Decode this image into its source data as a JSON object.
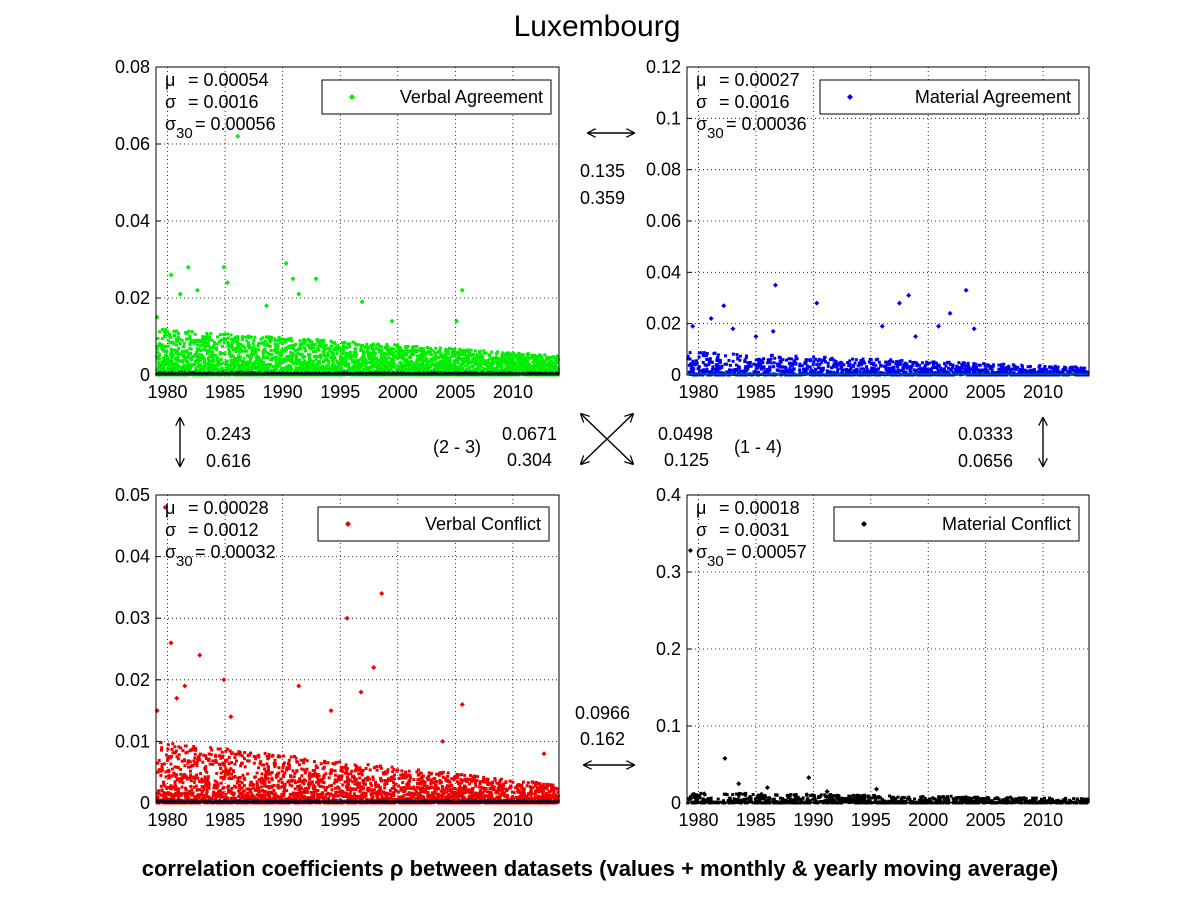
{
  "figure": {
    "title": "Luxembourg",
    "caption": "correlation coefficients ρ between datasets (values + monthly & yearly moving average)"
  },
  "chart_data": [
    {
      "type": "scatter",
      "id": "va",
      "legend": "Verbal Agreement",
      "color": "#00ee00",
      "stats": {
        "mu_label": "μ",
        "mu": "= 0.00054",
        "sigma_label": "σ",
        "sigma": "= 0.0016",
        "sigma30_label": "σ",
        "sigma30_sub": "30",
        "sigma30": "= 0.00056"
      },
      "xlim": [
        1979,
        2014
      ],
      "ylim": [
        0,
        0.08
      ],
      "xticks": [
        "1980",
        "1985",
        "1990",
        "1995",
        "2000",
        "2005",
        "2010"
      ],
      "xtick_values": [
        1980,
        1985,
        1990,
        1995,
        2000,
        2005,
        2010
      ],
      "yticks": [
        "0",
        "0.02",
        "0.04",
        "0.06",
        "0.08"
      ],
      "ytick_values": [
        0,
        0.02,
        0.04,
        0.06,
        0.08
      ],
      "highlights": [
        {
          "x": 1986.1,
          "y": 0.062
        },
        {
          "x": 1980.3,
          "y": 0.026
        },
        {
          "x": 1981.8,
          "y": 0.028
        },
        {
          "x": 1981.1,
          "y": 0.021
        },
        {
          "x": 1982.6,
          "y": 0.022
        },
        {
          "x": 1984.9,
          "y": 0.028
        },
        {
          "x": 1985.2,
          "y": 0.024
        },
        {
          "x": 1990.3,
          "y": 0.029
        },
        {
          "x": 1990.9,
          "y": 0.025
        },
        {
          "x": 1991.4,
          "y": 0.021
        },
        {
          "x": 1992.9,
          "y": 0.025
        },
        {
          "x": 1996.9,
          "y": 0.019
        },
        {
          "x": 2005.6,
          "y": 0.022
        },
        {
          "x": 1979.1,
          "y": 0.015
        },
        {
          "x": 1988.6,
          "y": 0.018
        },
        {
          "x": 1999.5,
          "y": 0.014
        },
        {
          "x": 2005.1,
          "y": 0.014
        }
      ],
      "cloud": {
        "density": 9.0,
        "ymax_early": 0.012,
        "ymax_late": 0.005,
        "seed": 11
      }
    },
    {
      "type": "scatter",
      "id": "ma",
      "legend": "Material Agreement",
      "color": "#0000ee",
      "stats": {
        "mu_label": "μ",
        "mu": "= 0.00027",
        "sigma_label": "σ",
        "sigma": "= 0.0016",
        "sigma30_label": "σ",
        "sigma30_sub": "30",
        "sigma30": "= 0.00036"
      },
      "xlim": [
        1979,
        2014
      ],
      "ylim": [
        0,
        0.12
      ],
      "xticks": [
        "1980",
        "1985",
        "1990",
        "1995",
        "2000",
        "2005",
        "2010"
      ],
      "xtick_values": [
        1980,
        1985,
        1990,
        1995,
        2000,
        2005,
        2010
      ],
      "yticks": [
        "0",
        "0.02",
        "0.04",
        "0.06",
        "0.08",
        "0.1",
        "0.12"
      ],
      "ytick_values": [
        0,
        0.02,
        0.04,
        0.06,
        0.08,
        0.1,
        0.12
      ],
      "highlights": [
        {
          "x": 1986.7,
          "y": 0.035
        },
        {
          "x": 1982.2,
          "y": 0.027
        },
        {
          "x": 1990.3,
          "y": 0.028
        },
        {
          "x": 1998.3,
          "y": 0.031
        },
        {
          "x": 1997.5,
          "y": 0.028
        },
        {
          "x": 2003.3,
          "y": 0.033
        },
        {
          "x": 2001.9,
          "y": 0.024
        },
        {
          "x": 1981.1,
          "y": 0.022
        },
        {
          "x": 1979.5,
          "y": 0.019
        },
        {
          "x": 1983.0,
          "y": 0.018
        },
        {
          "x": 1986.5,
          "y": 0.017
        },
        {
          "x": 1996.0,
          "y": 0.019
        },
        {
          "x": 2004.0,
          "y": 0.018
        },
        {
          "x": 2000.9,
          "y": 0.019
        },
        {
          "x": 1998.9,
          "y": 0.015
        },
        {
          "x": 1985.0,
          "y": 0.015
        }
      ],
      "cloud": {
        "density": 3.2,
        "ymax_early": 0.009,
        "ymax_late": 0.003,
        "seed": 23
      }
    },
    {
      "type": "scatter",
      "id": "vc",
      "legend": "Verbal Conflict",
      "color": "#ee0000",
      "stats": {
        "mu_label": "μ",
        "mu": "= 0.00028",
        "sigma_label": "σ",
        "sigma": "= 0.0012",
        "sigma30_label": "σ",
        "sigma30_sub": "30",
        "sigma30": "= 0.00032"
      },
      "xlim": [
        1979,
        2014
      ],
      "ylim": [
        0,
        0.05
      ],
      "xticks": [
        "1980",
        "1985",
        "1990",
        "1995",
        "2000",
        "2005",
        "2010"
      ],
      "xtick_values": [
        1980,
        1985,
        1990,
        1995,
        2000,
        2005,
        2010
      ],
      "yticks": [
        "0",
        "0.01",
        "0.02",
        "0.03",
        "0.04",
        "0.05"
      ],
      "ytick_values": [
        0,
        0.01,
        0.02,
        0.03,
        0.04,
        0.05
      ],
      "highlights": [
        {
          "x": 1979.8,
          "y": 0.048
        },
        {
          "x": 1980.3,
          "y": 0.026
        },
        {
          "x": 1981.5,
          "y": 0.019
        },
        {
          "x": 1982.8,
          "y": 0.024
        },
        {
          "x": 1984.9,
          "y": 0.02
        },
        {
          "x": 1991.4,
          "y": 0.019
        },
        {
          "x": 1995.6,
          "y": 0.03
        },
        {
          "x": 1998.6,
          "y": 0.034
        },
        {
          "x": 1997.9,
          "y": 0.022
        },
        {
          "x": 2005.6,
          "y": 0.016
        },
        {
          "x": 1979.1,
          "y": 0.015
        },
        {
          "x": 1980.8,
          "y": 0.017
        },
        {
          "x": 1985.5,
          "y": 0.014
        },
        {
          "x": 1994.2,
          "y": 0.015
        },
        {
          "x": 1996.8,
          "y": 0.018
        },
        {
          "x": 2003.9,
          "y": 0.01
        },
        {
          "x": 2012.7,
          "y": 0.008
        }
      ],
      "cloud": {
        "density": 6.5,
        "ymax_early": 0.01,
        "ymax_late": 0.003,
        "seed": 37
      }
    },
    {
      "type": "scatter",
      "id": "mc",
      "legend": "Material Conflict",
      "color": "#000000",
      "stats": {
        "mu_label": "μ",
        "mu": "= 0.00018",
        "sigma_label": "σ",
        "sigma": "= 0.0031",
        "sigma30_label": "σ",
        "sigma30_sub": "30",
        "sigma30": "= 0.00057"
      },
      "xlim": [
        1979,
        2014
      ],
      "ylim": [
        0,
        0.4
      ],
      "xticks": [
        "1980",
        "1985",
        "1990",
        "1995",
        "2000",
        "2005",
        "2010"
      ],
      "xtick_values": [
        1980,
        1985,
        1990,
        1995,
        2000,
        2005,
        2010
      ],
      "yticks": [
        "0",
        "0.1",
        "0.2",
        "0.3",
        "0.4"
      ],
      "ytick_values": [
        0,
        0.1,
        0.2,
        0.3,
        0.4
      ],
      "highlights": [
        {
          "x": 1979.3,
          "y": 0.328
        },
        {
          "x": 1982.3,
          "y": 0.058
        },
        {
          "x": 1989.6,
          "y": 0.033
        },
        {
          "x": 1983.5,
          "y": 0.025
        },
        {
          "x": 1986.0,
          "y": 0.02
        },
        {
          "x": 1991.2,
          "y": 0.015
        },
        {
          "x": 1995.5,
          "y": 0.018
        },
        {
          "x": 1980.5,
          "y": 0.012
        }
      ],
      "cloud": {
        "density": 2.2,
        "ymax_early": 0.014,
        "ymax_late": 0.006,
        "seed": 51
      }
    }
  ],
  "correlations": {
    "top": {
      "a": "0.135",
      "b": "0.359"
    },
    "left": {
      "a": "0.243",
      "b": "0.616"
    },
    "right": {
      "a": "0.0333",
      "b": "0.0656"
    },
    "bottom": {
      "a": "0.0966",
      "b": "0.162"
    },
    "diag_23": {
      "label": "(2 - 3)",
      "a": "0.0671",
      "b": "0.304"
    },
    "diag_14": {
      "label": "(1 - 4)",
      "a": "0.0498",
      "b": "0.125"
    }
  }
}
